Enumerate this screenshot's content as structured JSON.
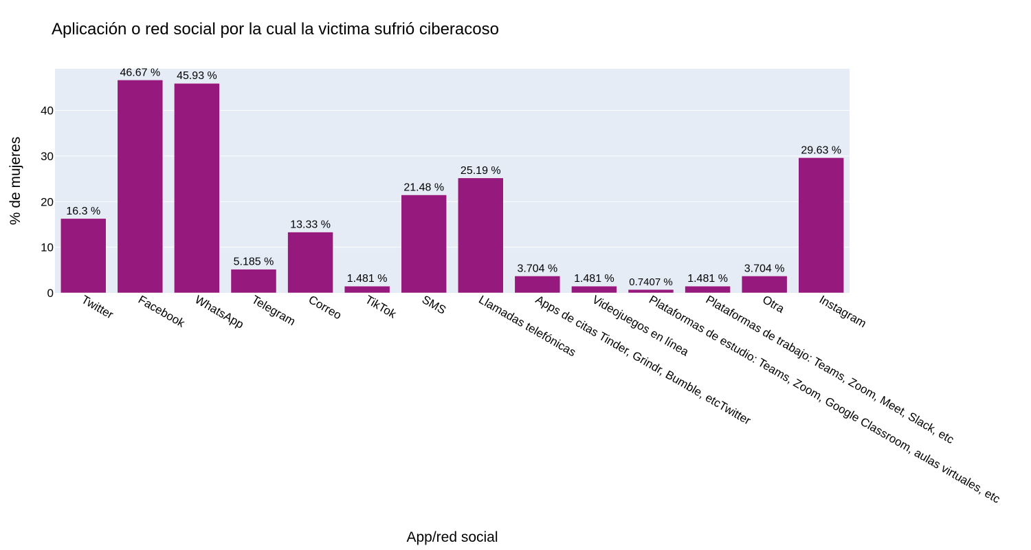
{
  "chart_data": {
    "type": "bar",
    "title": "Aplicación o red social por la cual la victima sufrió ciberacoso",
    "xlabel": "App/red social",
    "ylabel": "% de mujeres",
    "categories": [
      "Twitter",
      "Facebook",
      "WhatsApp",
      "Telegram",
      "Correo",
      "TikTok",
      "SMS",
      "Llamadas telefónicas",
      "Apps de citas Tinder, Grindr, Bumble, etcTwitter",
      "Videojuegos en línea",
      "Plataformas de estudio: Teams, Zoom, Google Classroom, aulas virtuales, etc",
      "Plataformas de trabajo: Teams, Zoom, Meet, Slack, etc",
      "Otra",
      "Instagram"
    ],
    "values": [
      16.3,
      46.67,
      45.93,
      5.185,
      13.33,
      1.481,
      21.48,
      25.19,
      3.704,
      1.481,
      0.7407,
      1.481,
      3.704,
      29.63
    ],
    "data_labels": [
      "16.3 %",
      "46.67 %",
      "45.93 %",
      "5.185 %",
      "13.33 %",
      "1.481 %",
      "21.48 %",
      "25.19 %",
      "3.704 %",
      "1.481 %",
      "0.7407 %",
      "1.481 %",
      "3.704 %",
      "29.63 %"
    ],
    "yticks": [
      0,
      10,
      20,
      30,
      40
    ],
    "ylim": [
      0,
      49.13
    ],
    "grid": true,
    "legend": "none",
    "colors": {
      "bar": "#961a7e",
      "plot_background": "#e5ecf6",
      "gridline": "#ffffff",
      "text": "#000000"
    }
  }
}
